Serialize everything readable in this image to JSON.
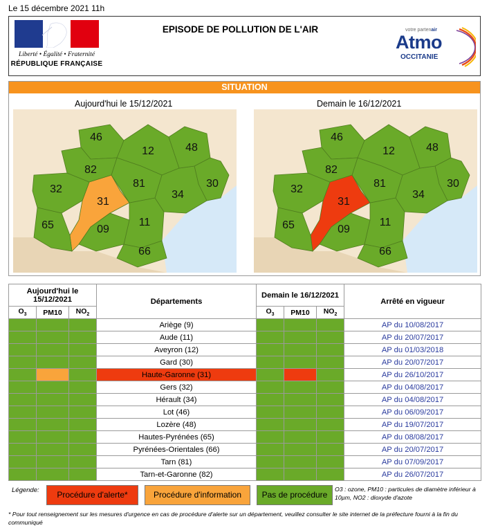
{
  "date_line": "Le 15 décembre 2021 11h",
  "header": {
    "title": "EPISODE DE POLLUTION DE L'AIR",
    "rf_motto": "Liberté • Égalité • Fraternité",
    "rf_name": "RÉPUBLIQUE FRANÇAISE",
    "atmo_tagline_prefix": "votre parten",
    "atmo_tagline_suffix": "air",
    "atmo_word": "Atmo",
    "atmo_sub": "OCCITANIE"
  },
  "situation": {
    "title": "SITUATION",
    "today_caption": "Aujourd'hui le 15/12/2021",
    "tomorrow_caption": "Demain le 16/12/2021",
    "department_numbers": [
      "46",
      "12",
      "48",
      "82",
      "30",
      "32",
      "81",
      "31",
      "34",
      "65",
      "09",
      "11",
      "66"
    ]
  },
  "colors": {
    "green": "#6aaa29",
    "orange": "#f9a43b",
    "red": "#ee3b0f",
    "situation_bar": "#f7931e",
    "sea": "#d6e9f8",
    "land_outside": "#f4e6cf",
    "spain": "#e8d5b5",
    "ap_link": "#2a3b9e"
  },
  "table": {
    "today_header": "Aujourd'hui le 15/12/2021",
    "tomorrow_header": "Demain le 16/12/2021",
    "departments_header": "Départements",
    "arrete_header": "Arrêté en vigueur",
    "pollutants": [
      "O3",
      "PM10",
      "NO2"
    ],
    "rows": [
      {
        "dept": "Ariège (9)",
        "ap": "AP du 10/08/2017",
        "today": [
          "green",
          "green",
          "green"
        ],
        "tomorrow": [
          "green",
          "green",
          "green"
        ]
      },
      {
        "dept": "Aude (11)",
        "ap": "AP du 20/07/2017",
        "today": [
          "green",
          "green",
          "green"
        ],
        "tomorrow": [
          "green",
          "green",
          "green"
        ]
      },
      {
        "dept": "Aveyron (12)",
        "ap": "AP du 01/03/2018",
        "today": [
          "green",
          "green",
          "green"
        ],
        "tomorrow": [
          "green",
          "green",
          "green"
        ]
      },
      {
        "dept": "Gard (30)",
        "ap": "AP du 20/07/2017",
        "today": [
          "green",
          "green",
          "green"
        ],
        "tomorrow": [
          "green",
          "green",
          "green"
        ]
      },
      {
        "dept": "Haute-Garonne (31)",
        "ap": "AP du 26/10/2017",
        "today": [
          "green",
          "orange",
          "green"
        ],
        "tomorrow": [
          "green",
          "red",
          "green"
        ],
        "alert": true
      },
      {
        "dept": "Gers (32)",
        "ap": "AP du 04/08/2017",
        "today": [
          "green",
          "green",
          "green"
        ],
        "tomorrow": [
          "green",
          "green",
          "green"
        ]
      },
      {
        "dept": "Hérault (34)",
        "ap": "AP du 04/08/2017",
        "today": [
          "green",
          "green",
          "green"
        ],
        "tomorrow": [
          "green",
          "green",
          "green"
        ]
      },
      {
        "dept": "Lot (46)",
        "ap": "AP du 06/09/2017",
        "today": [
          "green",
          "green",
          "green"
        ],
        "tomorrow": [
          "green",
          "green",
          "green"
        ]
      },
      {
        "dept": "Lozère (48)",
        "ap": "AP du 19/07/2017",
        "today": [
          "green",
          "green",
          "green"
        ],
        "tomorrow": [
          "green",
          "green",
          "green"
        ]
      },
      {
        "dept": "Hautes-Pyrénées (65)",
        "ap": "AP du 08/08/2017",
        "today": [
          "green",
          "green",
          "green"
        ],
        "tomorrow": [
          "green",
          "green",
          "green"
        ]
      },
      {
        "dept": "Pyrénées-Orientales (66)",
        "ap": "AP du 20/07/2017",
        "today": [
          "green",
          "green",
          "green"
        ],
        "tomorrow": [
          "green",
          "green",
          "green"
        ]
      },
      {
        "dept": "Tarn (81)",
        "ap": "AP du 07/09/2017",
        "today": [
          "green",
          "green",
          "green"
        ],
        "tomorrow": [
          "green",
          "green",
          "green"
        ]
      },
      {
        "dept": "Tarn-et-Garonne (82)",
        "ap": "AP du 26/07/2017",
        "today": [
          "green",
          "green",
          "green"
        ],
        "tomorrow": [
          "green",
          "green",
          "green"
        ]
      }
    ]
  },
  "legend": {
    "label": "Légende:",
    "alert": "Procédure d'alerte*",
    "info": "Procédure d'information",
    "none": "Pas de procédure",
    "note": "O3 : ozone, PM10 : particules de diamètre inférieur à 10µm, NO2 : dioxyde d'azote"
  },
  "footnote": "* Pour tout renseignement sur les mesures d'urgence en cas de procédure d'alerte sur un département, veuillez consulter le site internet de la préfecture fourni à la fin du communiqué"
}
